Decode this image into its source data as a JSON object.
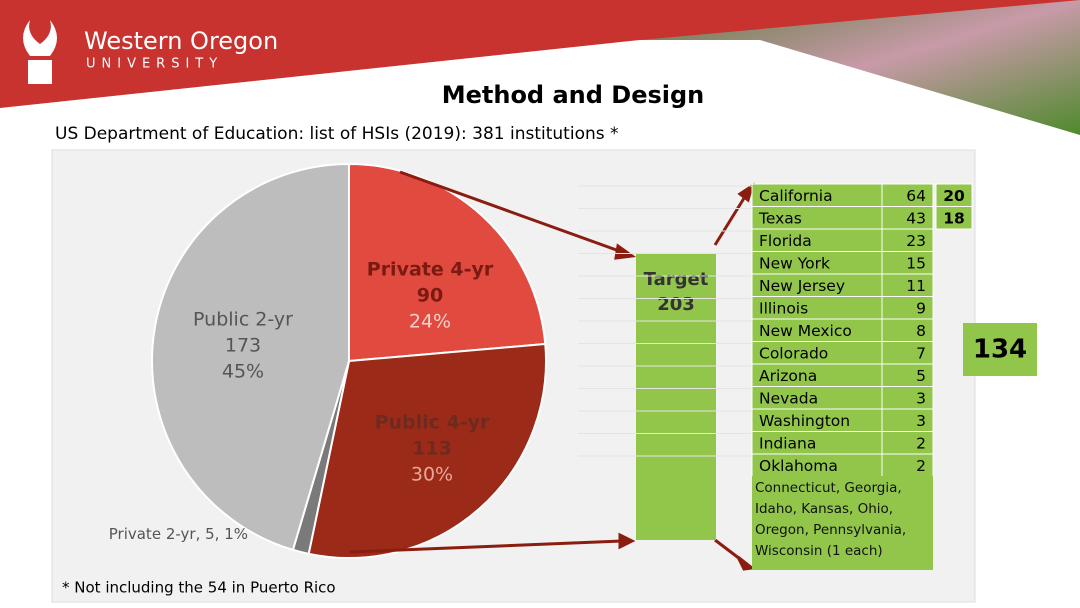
{
  "header": {
    "logo_line1": "Western Oregon",
    "logo_line2": "UNIVERSITY",
    "title": "Method and Design",
    "subtitle": "US Department of Education: list of HSIs (2019): 381 institutions *"
  },
  "chart_data": {
    "type": "pie",
    "categories": [
      "Private 4-yr",
      "Public 4-yr",
      "Private 2-yr",
      "Public 2-yr"
    ],
    "values": [
      90,
      113,
      5,
      173
    ],
    "percents": [
      24,
      30,
      1,
      45
    ],
    "percent_labels": [
      "24%",
      "30%",
      "1%",
      "45%"
    ],
    "colors": [
      "#e04a3f",
      "#9c2a18",
      "#7a7a7a",
      "#bdbdbd"
    ]
  },
  "target": {
    "label": "Target",
    "value": "203"
  },
  "table": {
    "rows": [
      [
        "California",
        "64",
        "20"
      ],
      [
        "Texas",
        "43",
        "18"
      ],
      [
        "Florida",
        "23"
      ],
      [
        "New York",
        "15"
      ],
      [
        "New Jersey",
        "11"
      ],
      [
        "Illinois",
        "9"
      ],
      [
        "New Mexico",
        "8"
      ],
      [
        "Colorado",
        "7"
      ],
      [
        "Arizona",
        "5"
      ],
      [
        "Nevada",
        "3"
      ],
      [
        "Washington",
        "3"
      ],
      [
        "Indiana",
        "2"
      ],
      [
        "Oklahoma",
        "2"
      ]
    ],
    "others": "Connecticut, Georgia, Idaho, Kansas, Ohio, Oregon, Pennsylvania, Wisconsin (1 each)"
  },
  "total_box": "134",
  "footnote": "* Not including the 54 in Puerto Rico"
}
